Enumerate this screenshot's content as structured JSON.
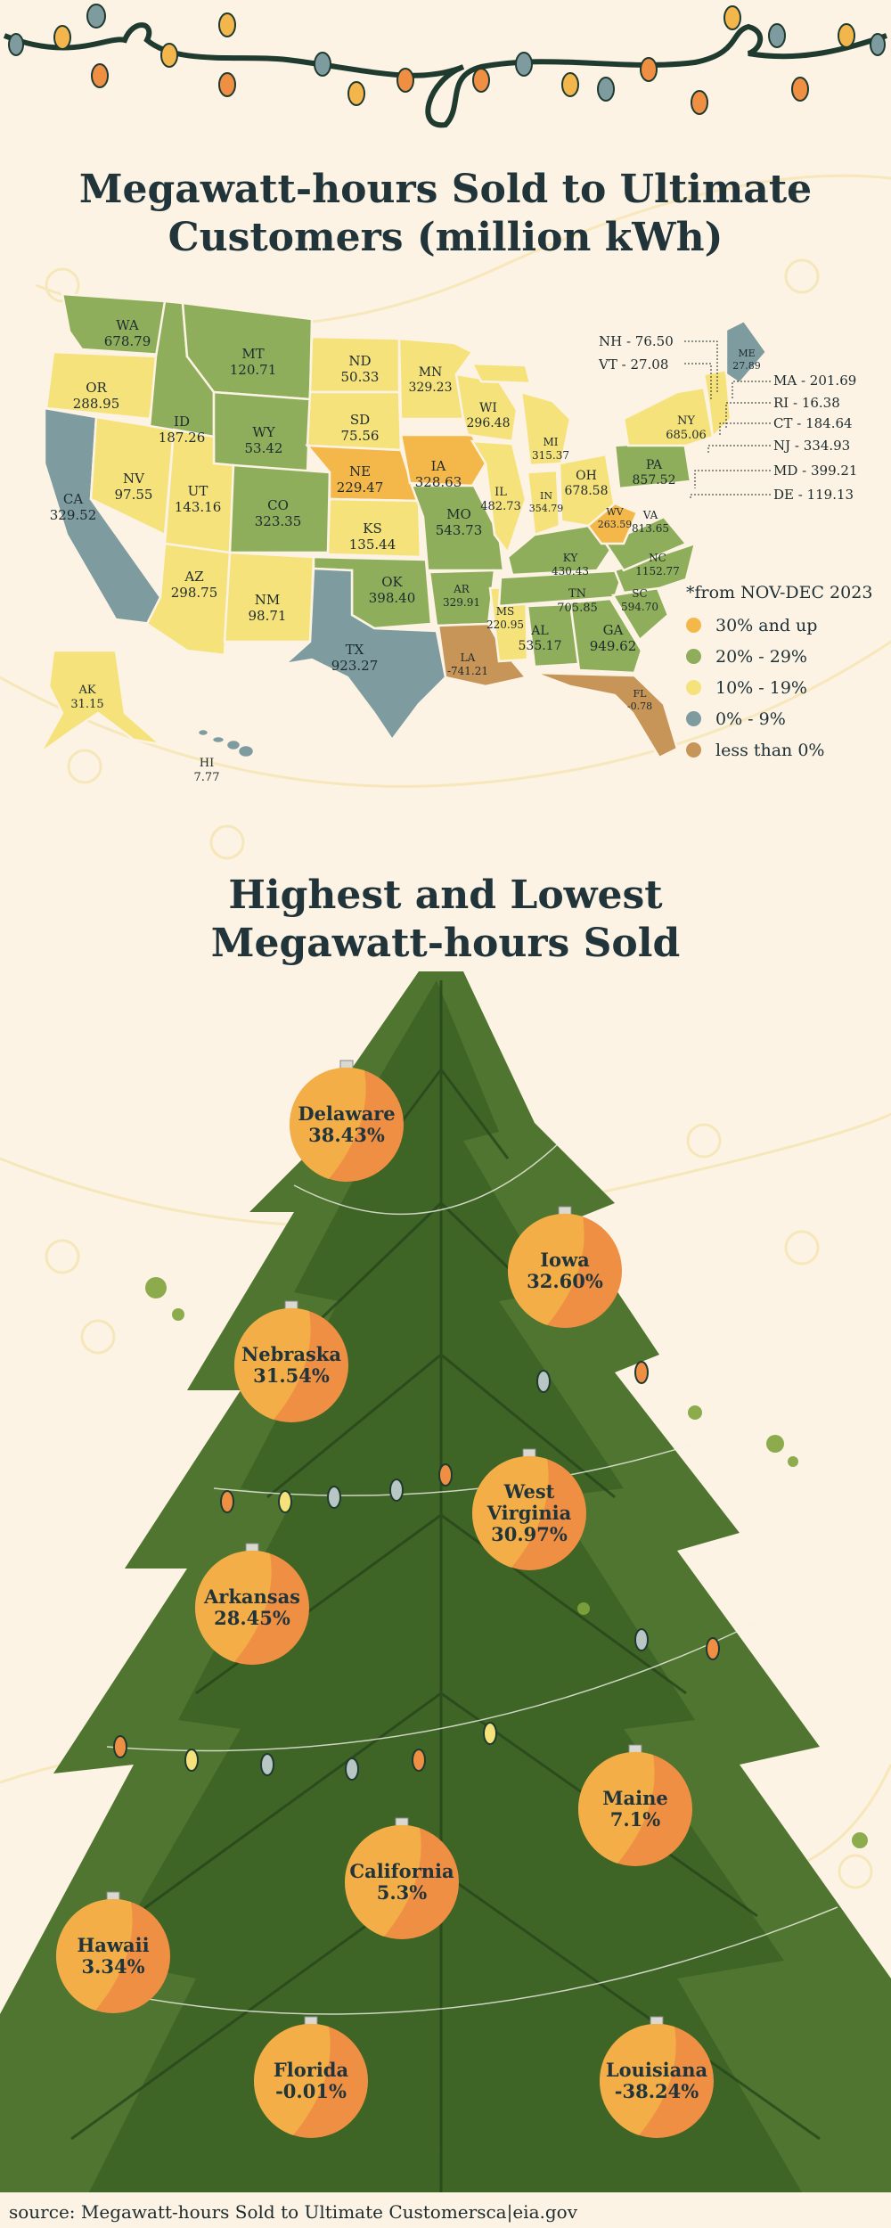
{
  "titles": {
    "map": "Megawatt-hours Sold to Ultimate Customers (million kWh)",
    "tree": "Highest and Lowest Megawatt-hours Sold"
  },
  "legend": {
    "note": "*from NOV-DEC 2023",
    "items": [
      {
        "label": "30% and up",
        "color": "#f4b84a"
      },
      {
        "label": "20% - 29%",
        "color": "#8fae5b"
      },
      {
        "label": "10% - 19%",
        "color": "#f6e27a"
      },
      {
        "label": "0% - 9%",
        "color": "#7e9ba0"
      },
      {
        "label": "less than 0%",
        "color": "#c79558"
      }
    ]
  },
  "map_states": [
    {
      "abbr": "WA",
      "value": "678.79"
    },
    {
      "abbr": "OR",
      "value": "288.95"
    },
    {
      "abbr": "CA",
      "value": "329.52"
    },
    {
      "abbr": "NV",
      "value": "97.55"
    },
    {
      "abbr": "ID",
      "value": "187.26"
    },
    {
      "abbr": "MT",
      "value": "120.71"
    },
    {
      "abbr": "WY",
      "value": "53.42"
    },
    {
      "abbr": "UT",
      "value": "143.16"
    },
    {
      "abbr": "AZ",
      "value": "298.75"
    },
    {
      "abbr": "CO",
      "value": "323.35"
    },
    {
      "abbr": "NM",
      "value": "98.71"
    },
    {
      "abbr": "ND",
      "value": "50.33"
    },
    {
      "abbr": "SD",
      "value": "75.56"
    },
    {
      "abbr": "NE",
      "value": "229.47"
    },
    {
      "abbr": "KS",
      "value": "135.44"
    },
    {
      "abbr": "OK",
      "value": "398.40"
    },
    {
      "abbr": "TX",
      "value": "923.27"
    },
    {
      "abbr": "MN",
      "value": "329.23"
    },
    {
      "abbr": "IA",
      "value": "328.63"
    },
    {
      "abbr": "MO",
      "value": "543.73"
    },
    {
      "abbr": "AR",
      "value": "329.91"
    },
    {
      "abbr": "LA",
      "value": "-741.21"
    },
    {
      "abbr": "WI",
      "value": "296.48"
    },
    {
      "abbr": "IL",
      "value": "482.73"
    },
    {
      "abbr": "MS",
      "value": "220.95"
    },
    {
      "abbr": "MI",
      "value": "315.37"
    },
    {
      "abbr": "IN",
      "value": "354.79"
    },
    {
      "abbr": "KY",
      "value": "430.43"
    },
    {
      "abbr": "TN",
      "value": "705.85"
    },
    {
      "abbr": "AL",
      "value": "535.17"
    },
    {
      "abbr": "GA",
      "value": "949.62"
    },
    {
      "abbr": "FL",
      "value": "-0.78"
    },
    {
      "abbr": "OH",
      "value": "678.58"
    },
    {
      "abbr": "WV",
      "value": "263.59"
    },
    {
      "abbr": "VA",
      "value": "813.65"
    },
    {
      "abbr": "NC",
      "value": "1152.77"
    },
    {
      "abbr": "SC",
      "value": "594.70"
    },
    {
      "abbr": "PA",
      "value": "857.52"
    },
    {
      "abbr": "NY",
      "value": "685.06"
    },
    {
      "abbr": "ME",
      "value": "27.89"
    },
    {
      "abbr": "AK",
      "value": "31.15"
    },
    {
      "abbr": "HI",
      "value": "7.77"
    }
  ],
  "callouts": [
    {
      "text": "NH - 76.50"
    },
    {
      "text": "VT - 27.08"
    },
    {
      "text": "MA - 201.69"
    },
    {
      "text": "RI -  16.38"
    },
    {
      "text": "CT -  184.64"
    },
    {
      "text": "NJ -  334.93"
    },
    {
      "text": "MD -  399.21"
    },
    {
      "text": "DE -  119.13"
    }
  ],
  "ornaments": [
    {
      "name": "Delaware",
      "value": "38.43%"
    },
    {
      "name": "Iowa",
      "value": "32.60%"
    },
    {
      "name": "Nebraska",
      "value": "31.54%"
    },
    {
      "name": "West Virginia",
      "value": "30.97%"
    },
    {
      "name": "Arkansas",
      "value": "28.45%"
    },
    {
      "name": "Maine",
      "value": "7.1%"
    },
    {
      "name": "California",
      "value": "5.3%"
    },
    {
      "name": "Hawaii",
      "value": "3.34%"
    },
    {
      "name": "Florida",
      "value": "-0.01%"
    },
    {
      "name": "Louisiana",
      "value": "-38.24%"
    }
  ],
  "source": "source: Megawatt-hours Sold to Ultimate Customersca|eia.gov"
}
